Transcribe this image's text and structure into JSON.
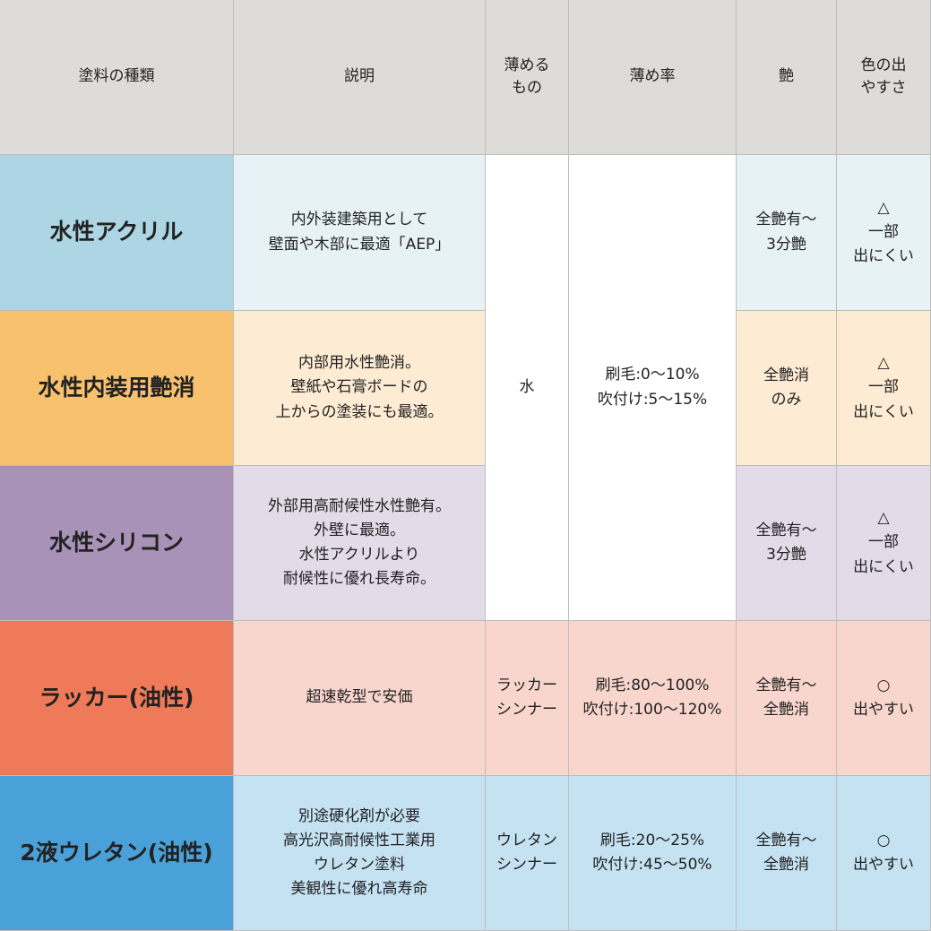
{
  "headers": [
    "塗料の種類",
    "説明",
    "薄める\nもの",
    "薄め率",
    "艶",
    "色の出\nやすさ"
  ],
  "merged": {
    "thinner": "水",
    "ratio": "刷毛:0〜10%\n吹付け:5〜15%"
  },
  "rows": [
    {
      "name": "水性アクリル",
      "desc": "内外装建築用として\n壁面や木部に最適「AEP」",
      "gloss": "全艶有〜\n3分艶",
      "color": "△\n一部\n出にくい",
      "name_bg": "#aed5e3",
      "bg": "#e6f2f6"
    },
    {
      "name": "水性内装用艶消",
      "desc": "内部用水性艶消。\n壁紙や石膏ボードの\n上からの塗装にも最適。",
      "gloss": "全艶消\nのみ",
      "color": "△\n一部\n出にくい",
      "name_bg": "#f7c16e",
      "bg": "#fdebd3"
    },
    {
      "name": "水性シリコン",
      "desc": "外部用高耐候性水性艶有。\n外壁に最適。\n水性アクリルより\n耐候性に優れ長寿命。",
      "gloss": "全艶有〜\n3分艶",
      "color": "△\n一部\n出にくい",
      "name_bg": "#a992b8",
      "bg": "#e4dbe9"
    },
    {
      "name": "ラッカー(油性)",
      "desc": "超速乾型で安価",
      "thinner": "ラッカー\nシンナー",
      "ratio": "刷毛:80〜100%\n吹付け:100〜120%",
      "gloss": "全艶有〜\n全艶消",
      "color": "○\n出やすい",
      "name_bg": "#ee7a59",
      "bg": "#f8d6cd"
    },
    {
      "name": "2液ウレタン(油性)",
      "desc": "別途硬化剤が必要\n高光沢高耐候性工業用\nウレタン塗料\n美観性に優れ高寿命",
      "thinner": "ウレタン\nシンナー",
      "ratio": "刷毛:20〜25%\n吹付け:45〜50%",
      "gloss": "全艶有〜\n全艶消",
      "color": "○\n出やすい",
      "name_bg": "#4aa1d9",
      "bg": "#c5e2f3"
    }
  ]
}
